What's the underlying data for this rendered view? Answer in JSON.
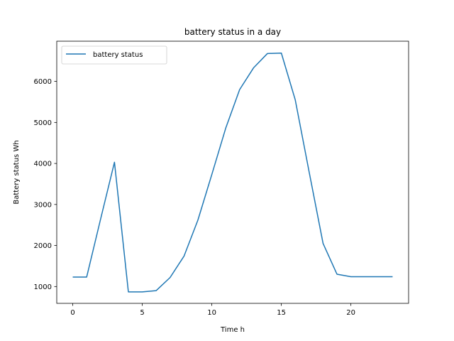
{
  "chart_data": {
    "type": "line",
    "title": "battery status in a day",
    "xlabel": "Time h",
    "ylabel": "Battery status Wh",
    "xlim": [
      -1.15,
      24.15
    ],
    "ylim": [
      590,
      6980
    ],
    "xticks": [
      0,
      5,
      10,
      15,
      20
    ],
    "yticks": [
      1000,
      2000,
      3000,
      4000,
      5000,
      6000
    ],
    "grid": false,
    "legend_position": "top-left",
    "series": [
      {
        "name": "battery status",
        "color": "#1f77b4",
        "x": [
          0,
          1,
          2,
          3,
          4,
          5,
          6,
          7,
          8,
          9,
          10,
          11,
          12,
          13,
          14,
          15,
          16,
          17,
          18,
          19,
          20,
          21,
          22,
          23
        ],
        "y": [
          1230,
          1230,
          2640,
          4030,
          870,
          870,
          900,
          1220,
          1740,
          2620,
          3730,
          4860,
          5800,
          6330,
          6680,
          6690,
          5550,
          3790,
          2050,
          1300,
          1240,
          1240,
          1240,
          1240
        ]
      }
    ]
  }
}
